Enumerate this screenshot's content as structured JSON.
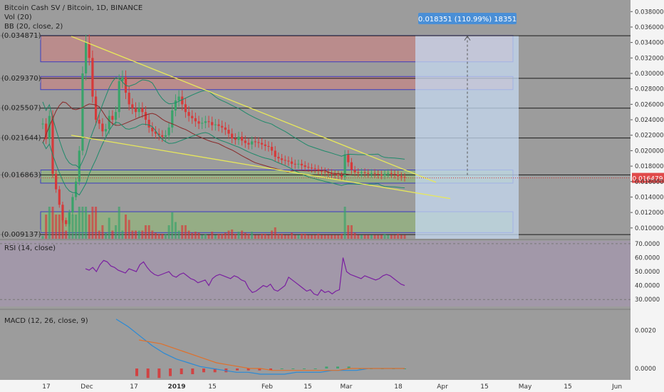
{
  "header": {
    "symbol": "Bitcoin Cash SV / Bitcoin, 1D, BINANCE",
    "vol": "Vol (20)",
    "bb": "BB (20, close, 2)"
  },
  "panes": {
    "rsi_label": "RSI (14, close)",
    "macd_label": "MACD (12, 26, close, 9)"
  },
  "measure_label": "0.018351 (110.99%) 18351",
  "price_tag": "0.016479",
  "colors": {
    "up": "#3aa36a",
    "down": "#d63a3a",
    "trend": "#e8e85a",
    "bb_basis": "#8a2a2a",
    "bb_band": "#1e8a6a",
    "rsi": "#7a1fa0",
    "macd": "#2a8ad6",
    "signal": "#e0702a",
    "resist": "#e07a7a",
    "support": "#8fc46a",
    "measure": "#c6daf2"
  },
  "chart_data": [
    {
      "type": "candlestick",
      "title": "Bitcoin Cash SV / Bitcoin, 1D, BINANCE",
      "y_ticks": [
        "0.038000",
        "0.036000",
        "0.034000",
        "0.032000",
        "0.030000",
        "0.028000",
        "0.026000",
        "0.024000",
        "0.022000",
        "0.020000",
        "0.018000",
        "0.016000",
        "0.014000",
        "0.012000",
        "0.010000"
      ],
      "ylim": [
        0.0086,
        0.0395
      ],
      "x_ticks": [
        "17",
        "Dec",
        "17",
        "2019",
        "15",
        "Feb",
        "15",
        "Mar",
        "18",
        "Apr",
        "15",
        "May",
        "15",
        "Jun"
      ],
      "close_series_approx": [
        0.0235,
        0.0215,
        0.0245,
        0.017,
        0.015,
        0.013,
        0.011,
        0.0105,
        0.012,
        0.014,
        0.016,
        0.02,
        0.03,
        0.034,
        0.032,
        0.027,
        0.024,
        0.0235,
        0.0225,
        0.0228,
        0.0245,
        0.024,
        0.025,
        0.029,
        0.0295,
        0.0275,
        0.026,
        0.0255,
        0.025,
        0.0255,
        0.025,
        0.024,
        0.023,
        0.0225,
        0.0222,
        0.022,
        0.0218,
        0.022,
        0.023,
        0.0252,
        0.0265,
        0.027,
        0.026,
        0.025,
        0.0245,
        0.0242,
        0.0238,
        0.0235,
        0.0236,
        0.0238,
        0.0237,
        0.0233,
        0.0234,
        0.0232,
        0.023,
        0.0227,
        0.0222,
        0.0216,
        0.0214,
        0.0218,
        0.0213,
        0.021,
        0.0208,
        0.0212,
        0.0211,
        0.021,
        0.0208,
        0.0206,
        0.0205,
        0.02,
        0.0192,
        0.019,
        0.0188,
        0.0187,
        0.0186,
        0.0183,
        0.0182,
        0.0183,
        0.0181,
        0.0179,
        0.0178,
        0.0177,
        0.0176,
        0.0174,
        0.0173,
        0.0172,
        0.0171,
        0.017,
        0.0169,
        0.0168,
        0.0166,
        0.0195,
        0.0185,
        0.0175,
        0.0172,
        0.0171,
        0.0172,
        0.0171,
        0.017,
        0.0171,
        0.017,
        0.0169,
        0.0168,
        0.017,
        0.0171,
        0.017,
        0.0169,
        0.0167,
        0.0166,
        0.0165
      ],
      "levels": [
        "(0.034871)",
        "(0.029370)",
        "(0.025507)",
        "(0.021644)",
        "(0.016863)",
        "(0.009137)"
      ],
      "level_values": [
        0.034871,
        0.02937,
        0.025507,
        0.021644,
        0.016863,
        0.009137
      ],
      "current_price": 0.016479,
      "measure_target": 0.03483
    },
    {
      "type": "line",
      "name": "RSI (14, close)",
      "y_ticks": [
        "70.0000",
        "60.0000",
        "50.0000",
        "40.0000",
        "30.0000"
      ],
      "ylim": [
        25,
        72
      ],
      "band": [
        30,
        70
      ],
      "values": [
        52,
        51,
        53,
        50,
        55,
        58,
        57,
        54,
        53,
        51,
        50,
        49,
        52,
        51,
        50,
        55,
        57,
        53,
        50,
        48,
        47,
        48,
        49,
        50,
        47,
        46,
        48,
        49,
        47,
        45,
        44,
        42,
        43,
        44,
        40,
        45,
        47,
        48,
        47,
        46,
        45,
        47,
        46,
        44,
        43,
        38,
        35,
        36,
        38,
        40,
        39,
        41,
        37,
        36,
        38,
        40,
        46,
        44,
        42,
        40,
        38,
        36,
        37,
        34,
        33,
        37,
        35,
        36,
        34,
        36,
        37,
        60,
        50,
        48,
        47,
        46,
        45,
        47,
        46,
        45,
        44,
        45,
        47,
        48,
        47,
        45,
        43,
        41,
        40
      ]
    },
    {
      "type": "line",
      "name": "MACD (12, 26, close, 9)",
      "y_ticks": [
        "0.0020",
        "0.0000"
      ],
      "ylim": [
        -0.0006,
        0.003
      ],
      "macd": [
        0.0026,
        0.0022,
        0.0017,
        0.0012,
        0.0008,
        0.0005,
        0.0003,
        0.0001,
        -0.0,
        -0.0001,
        -0.0002,
        -0.0002,
        -0.0003,
        -0.0003,
        -0.0003,
        -0.0002,
        -0.0002,
        -0.0002,
        -0.0001,
        -0.0001,
        -0.0001,
        -0.0,
        0.0,
        0.0,
        0.0
      ],
      "signal": [
        0.0015,
        0.0014,
        0.0013,
        0.0011,
        0.0009,
        0.0007,
        0.0005,
        0.0003,
        0.0002,
        0.0001,
        0.0,
        -0.0,
        -0.0001,
        -0.0001,
        -0.0001,
        -0.0001,
        -0.0001,
        -0.0001,
        -0.0001,
        -0.0,
        -0.0,
        -0.0,
        -0.0,
        0.0,
        0.0
      ],
      "histogram": [
        -0.0004,
        -0.0005,
        -0.0005,
        -0.0004,
        -0.0003,
        -0.0003,
        -0.0002,
        -0.0002,
        -0.0002,
        -0.0001,
        -0.0001,
        -0.0001,
        -0.0001,
        0.0,
        0.0,
        0.0,
        0.0,
        0.0001,
        0.0001,
        0.0001,
        0.0,
        0.0,
        0.0,
        0.0,
        0.0
      ]
    }
  ]
}
